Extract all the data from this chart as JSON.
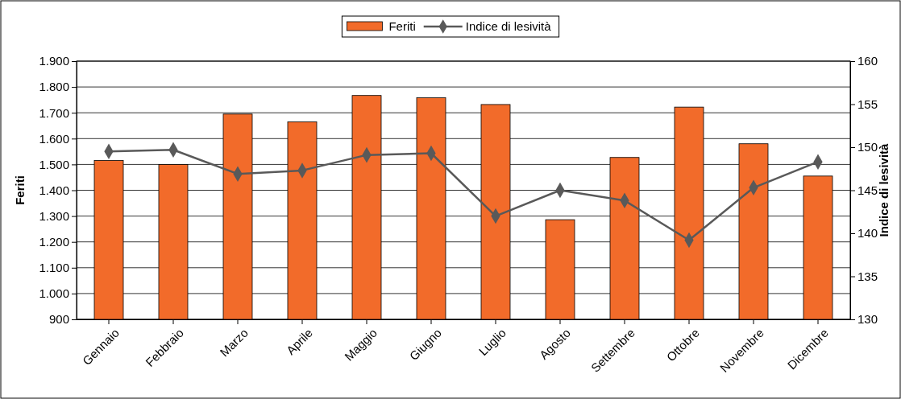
{
  "chart_data": {
    "type": "bar",
    "ylabel": "Feriti",
    "y2label": "Indice di lesività",
    "categories": [
      "Gennaio",
      "Febbraio",
      "Marzo",
      "Aprile",
      "Maggio",
      "Giugno",
      "Luglio",
      "Agosto",
      "Settembre",
      "Ottobre",
      "Novembre",
      "Dicembre"
    ],
    "series": [
      {
        "name": "Feriti",
        "color": "#f26b2a",
        "values": [
          1515,
          1500,
          1695,
          1665,
          1767,
          1758,
          1732,
          1286,
          1527,
          1722,
          1580,
          1455
        ]
      },
      {
        "name": "Indice di lesività",
        "type": "line",
        "axis": "y2",
        "color": "#595959",
        "marker": "diamond",
        "line_style": "solid",
        "values": [
          149.5,
          149.7,
          146.9,
          147.3,
          149.1,
          149.3,
          142.0,
          145.0,
          143.8,
          139.2,
          145.3,
          148.3
        ]
      }
    ],
    "ylim": [
      900,
      1900
    ],
    "yticks": [
      {
        "value": 900,
        "label": "900"
      },
      {
        "value": 1000,
        "label": "1.000"
      },
      {
        "value": 1100,
        "label": "1.100"
      },
      {
        "value": 1200,
        "label": "1.200"
      },
      {
        "value": 1300,
        "label": "1.300"
      },
      {
        "value": 1400,
        "label": "1.400"
      },
      {
        "value": 1500,
        "label": "1.500"
      },
      {
        "value": 1600,
        "label": "1.600"
      },
      {
        "value": 1700,
        "label": "1.700"
      },
      {
        "value": 1800,
        "label": "1.800"
      },
      {
        "value": 1900,
        "label": "1.900"
      }
    ],
    "y2lim": [
      130,
      160
    ],
    "y2ticks": [
      130,
      135,
      140,
      145,
      150,
      155,
      160
    ],
    "grid": "y",
    "legend": "top"
  }
}
